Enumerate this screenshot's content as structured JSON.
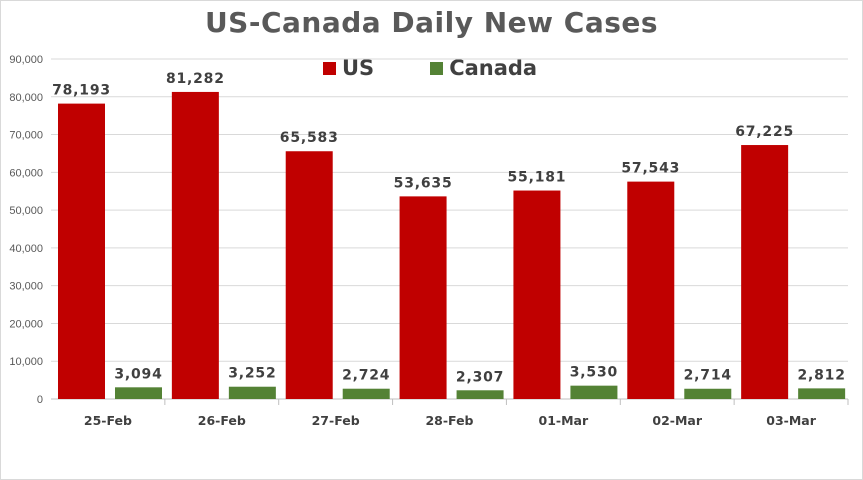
{
  "chart_data": {
    "type": "bar",
    "title": "US-Canada Daily New Cases",
    "xlabel": "",
    "ylabel": "",
    "categories": [
      "25-Feb",
      "26-Feb",
      "27-Feb",
      "28-Feb",
      "01-Mar",
      "02-Mar",
      "03-Mar"
    ],
    "series": [
      {
        "name": "US",
        "color": "#c00000",
        "values": [
          78193,
          81282,
          65583,
          53635,
          55181,
          57543,
          67225
        ],
        "labels": [
          "78,193",
          "81,282",
          "65,583",
          "53,635",
          "55,181",
          "57,543",
          "67,225"
        ]
      },
      {
        "name": "Canada",
        "color": "#548235",
        "values": [
          3094,
          3252,
          2724,
          2307,
          3530,
          2714,
          2812
        ],
        "labels": [
          "3,094",
          "3,252",
          "2,724",
          "2,307",
          "3,530",
          "2,714",
          "2,812"
        ]
      }
    ],
    "ylim": [
      0,
      90000
    ],
    "yticks": [
      0,
      10000,
      20000,
      30000,
      40000,
      50000,
      60000,
      70000,
      80000,
      90000
    ],
    "ytick_labels": [
      "0",
      "10,000",
      "20,000",
      "30,000",
      "40,000",
      "50,000",
      "60,000",
      "70,000",
      "80,000",
      "90,000"
    ],
    "grid": true,
    "legend_position": "top-center"
  }
}
